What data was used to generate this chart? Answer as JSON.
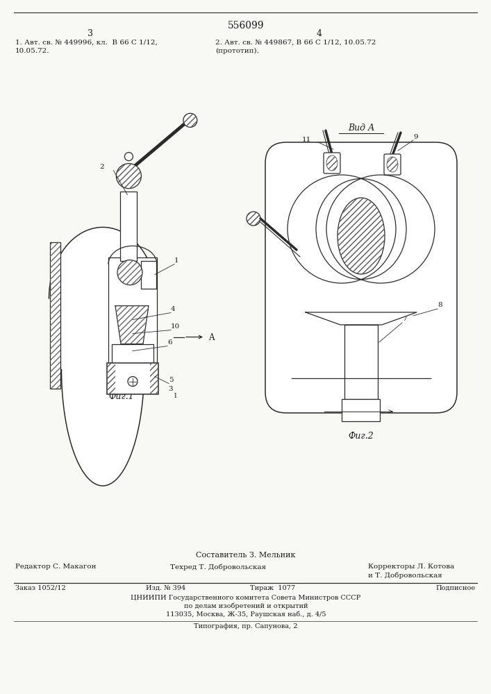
{
  "background_color": "#f8f8f5",
  "patent_number": "556099",
  "col_left_num": "3",
  "col_right_num": "4",
  "ref1": "1. Авт. св. № 449996, кл.  B 66 C 1/12,\n10.05.72.",
  "ref2": "2. Авт. св. № 449867, B 66 C 1/12, 10.05.72\n(прототип).",
  "fig1_caption": "Фиг.1",
  "fig2_caption": "Фиг.2",
  "view_label": "Вид А",
  "arrow_a_label": "A",
  "footer_compiler": "Составитель З. Мельник",
  "footer_editor": "Редактор С. Макагон",
  "footer_techred": "Техред Т. Добровольская",
  "footer_correctors": "Корректоры Л. Котова\nи Т. Добровольская",
  "footer_order": "Заказ 1052/12",
  "footer_izd": "Изд. № 394",
  "footer_tirazh": "Тираж  1077",
  "footer_podpisnoe": "Подписное",
  "footer_cniiipi": "ЦНИИПИ Государственного комитета Совета Министров СССР",
  "footer_po_delam": "по делам изобретений и открытий",
  "footer_address": "113035, Москва, Ж-35, Раушская наб., д. 4/5",
  "footer_typografia": "Типография, пр. Сапунова, 2",
  "line_color": "#333333",
  "text_color": "#1a1a1a",
  "draw_color": "#2a2a2a"
}
